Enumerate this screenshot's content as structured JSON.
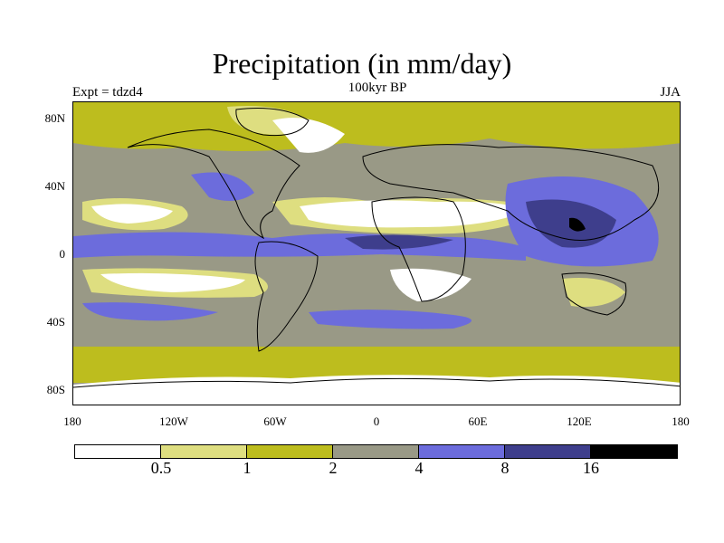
{
  "title": "Precipitation (in mm/day)",
  "experiment_label": "Expt = tdzd4",
  "period_label": "100kyr BP",
  "season_label": "JJA",
  "lat_ticks": [
    "80N",
    "40N",
    "0",
    "40S",
    "80S"
  ],
  "lon_ticks": [
    "180",
    "120W",
    "60W",
    "0",
    "60E",
    "120E",
    "180"
  ],
  "colorbar": {
    "colors": [
      "#ffffff",
      "#dede80",
      "#bdbd1e",
      "#999986",
      "#6c6cdc",
      "#3e3e8c",
      "#000000"
    ],
    "labels": [
      "0.5",
      "1",
      "2",
      "4",
      "8",
      "16"
    ]
  }
}
